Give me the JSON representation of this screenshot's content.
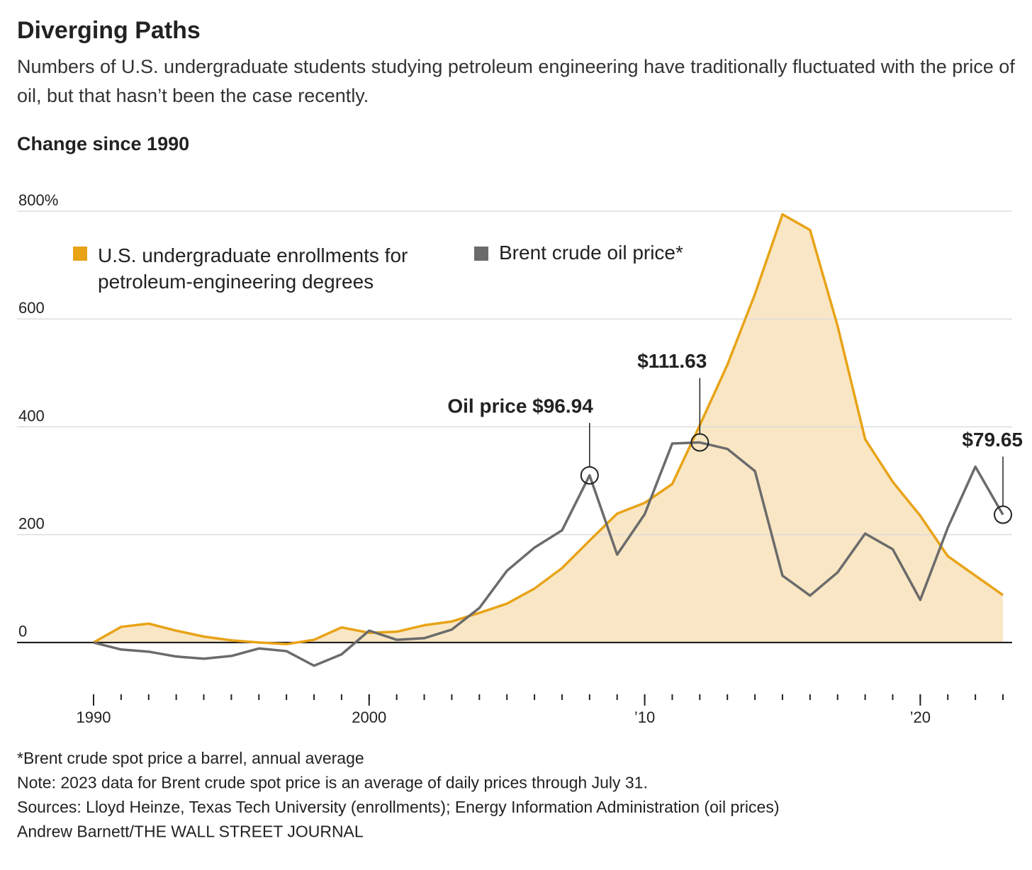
{
  "chart_data": {
    "type": "line",
    "title": "Diverging Paths",
    "subtitle": "Numbers of U.S. undergraduate students studying petroleum engineering have traditionally fluctuated with the price of oil, but that hasn’t been the case recently.",
    "y_axis_label": "Change since 1990",
    "x": [
      1990,
      1991,
      1992,
      1993,
      1994,
      1995,
      1996,
      1997,
      1998,
      1999,
      2000,
      2001,
      2002,
      2003,
      2004,
      2005,
      2006,
      2007,
      2008,
      2009,
      2010,
      2011,
      2012,
      2013,
      2014,
      2015,
      2016,
      2017,
      2018,
      2019,
      2020,
      2021,
      2022,
      2023
    ],
    "series": [
      {
        "name": "U.S. undergraduate enrollments for petroleum-engineering degrees",
        "color": "#e8a317",
        "fill": "#f9e6c4",
        "values": [
          0,
          29,
          35,
          22,
          11,
          4,
          0,
          -3,
          5,
          28,
          18,
          20,
          32,
          39,
          55,
          72,
          100,
          138,
          189,
          239,
          259,
          294,
          403,
          515,
          646,
          794,
          765,
          587,
          377,
          298,
          235,
          160,
          124,
          88
        ]
      },
      {
        "name": "Brent crude oil price*",
        "color": "#6b6b6b",
        "values": [
          0,
          -13,
          -17,
          -26,
          -30,
          -25,
          -11,
          -16,
          -43,
          -22,
          22,
          5,
          8,
          24,
          64,
          133,
          176,
          208,
          310,
          163,
          238,
          369,
          371,
          359,
          318,
          124,
          87,
          130,
          202,
          173,
          79,
          213,
          326,
          237
        ]
      }
    ],
    "annotations": [
      {
        "x": 2008,
        "label": "Oil price $96.94"
      },
      {
        "x": 2012,
        "label": "$111.63"
      },
      {
        "x": 2023,
        "label": "$79.65"
      }
    ],
    "xlim": [
      1990,
      2023
    ],
    "xticks": [
      1990,
      2000,
      {
        "value": 2010,
        "label": "’10"
      },
      {
        "value": 2020,
        "label": "’20"
      }
    ],
    "ylim": [
      -100,
      800
    ],
    "yticks": [
      0,
      200,
      400,
      600,
      {
        "value": 800,
        "label": "800%"
      }
    ],
    "grid": true,
    "legend": "top-left",
    "footnotes": [
      "*Brent crude spot price a barrel, annual average",
      "Note: 2023 data for Brent crude spot price is an average of daily prices through July 31.",
      "Sources: Lloyd Heinze, Texas Tech University (enrollments); Energy Information Administration (oil prices)",
      "Andrew Barnett/THE WALL STREET JOURNAL"
    ]
  }
}
